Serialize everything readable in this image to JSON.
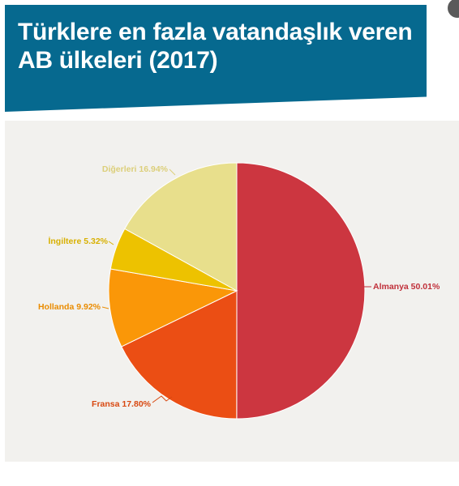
{
  "title": "Türklere en fazla vatandaşlık veren AB ülkeleri (2017)",
  "chart_data": {
    "type": "pie",
    "title": "Türklere en fazla vatandaşlık veren AB ülkeleri (2017)",
    "start_angle_deg": 0,
    "direction": "clockwise",
    "slices": [
      {
        "label": "Almanya",
        "value": 50.01,
        "value_text": "50.01%",
        "color": "#cc3640"
      },
      {
        "label": "Fransa",
        "value": 17.8,
        "value_text": "17.80%",
        "color": "#eb4e14"
      },
      {
        "label": "Hollanda",
        "value": 9.92,
        "value_text": "9.92%",
        "color": "#fa9708"
      },
      {
        "label": "İngiltere",
        "value": 5.32,
        "value_text": "5.32%",
        "color": "#edc200"
      },
      {
        "label": "Diğerleri",
        "value": 16.94,
        "value_text": "16.94%",
        "color": "#e8df8c"
      }
    ],
    "label_colors": {
      "Almanya": "#c0303a",
      "Fransa": "#d84810",
      "Hollanda": "#ea8c00",
      "İngiltere": "#d8b000",
      "Diğerleri": "#dccf7a"
    }
  },
  "colors": {
    "banner": "#06698f",
    "panel": "#f2f1ee"
  }
}
